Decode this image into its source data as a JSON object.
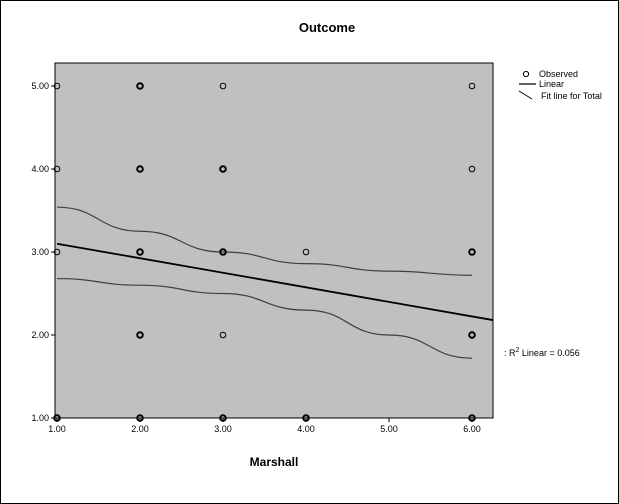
{
  "chart_data": {
    "type": "scatter",
    "title": "Outcome",
    "xlabel": "Marshall",
    "ylabel": "",
    "xlim": [
      1.0,
      6.25
    ],
    "ylim": [
      1.0,
      5.4
    ],
    "x_ticks": [
      "1.00",
      "2.00",
      "3.00",
      "4.00",
      "5.00",
      "6.00"
    ],
    "y_ticks": [
      "1.00",
      "2.00",
      "3.00",
      "4.00",
      "5.00"
    ],
    "grid": false,
    "legend_position": "top-right",
    "plot_background": "#c0c0c0",
    "series": [
      {
        "name": "Observed",
        "type": "scatter",
        "points": [
          [
            1,
            5
          ],
          [
            1,
            4
          ],
          [
            1,
            3
          ],
          [
            1,
            1
          ],
          [
            2,
            5
          ],
          [
            2,
            4
          ],
          [
            2,
            3
          ],
          [
            2,
            2
          ],
          [
            2,
            1
          ],
          [
            3,
            5
          ],
          [
            3,
            4
          ],
          [
            3,
            3
          ],
          [
            3,
            2
          ],
          [
            3,
            1
          ],
          [
            4,
            3
          ],
          [
            4,
            1
          ],
          [
            6,
            5
          ],
          [
            6,
            4
          ],
          [
            6,
            3
          ],
          [
            6,
            2
          ],
          [
            6,
            1
          ]
        ],
        "bold_points": [
          [
            2,
            5
          ],
          [
            2,
            4
          ],
          [
            2,
            3
          ],
          [
            2,
            2
          ],
          [
            2,
            1
          ],
          [
            3,
            4
          ],
          [
            3,
            3
          ],
          [
            3,
            1
          ],
          [
            4,
            1
          ],
          [
            6,
            3
          ],
          [
            6,
            2
          ],
          [
            6,
            1
          ],
          [
            1,
            1
          ]
        ]
      },
      {
        "name": "Linear",
        "type": "line",
        "x": [
          1.0,
          6.25
        ],
        "y": [
          3.1,
          2.18
        ]
      },
      {
        "name": "Fit line for Total",
        "type": "band",
        "x": [
          1.0,
          2.0,
          3.0,
          4.0,
          5.0,
          6.0
        ],
        "upper": [
          3.54,
          3.25,
          3.0,
          2.86,
          2.77,
          2.72
        ],
        "lower": [
          2.68,
          2.6,
          2.5,
          2.3,
          2.0,
          1.72
        ]
      }
    ],
    "legend": [
      "Observed",
      "Linear",
      "Fit line for Total"
    ],
    "annotation": "R² Linear = 0.056"
  },
  "colors": {
    "plot_background": "#c0c0c0",
    "marker": "#000000",
    "line": "#000000",
    "band": "#404040"
  }
}
